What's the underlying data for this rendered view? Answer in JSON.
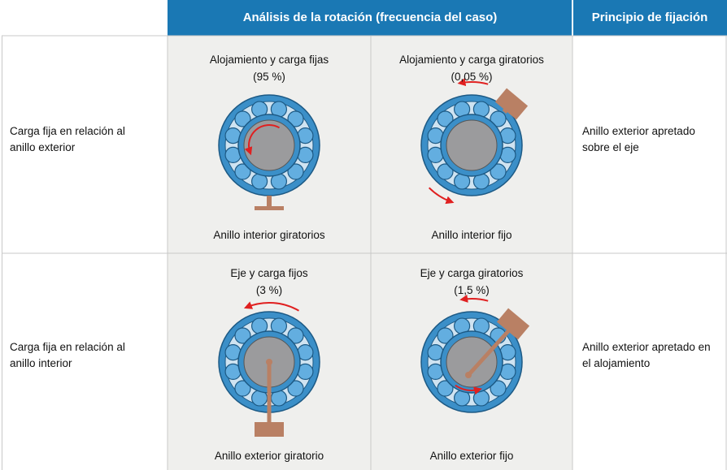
{
  "header": {
    "analysis": "Análisis de la rotación (frecuencia del caso)",
    "principle": "Principio de fijación"
  },
  "rows": [
    {
      "load": "Carga fija en relación al anillo exterior",
      "principle": "Anillo exterior apretado sobre el eje",
      "cases": [
        {
          "title": "Alojamiento y carga fijas",
          "frequency": "(95 %)",
          "caption": "Anillo interior giratorios"
        },
        {
          "title": "Alojamiento y carga giratorios",
          "frequency": "(0,05 %)",
          "caption": "Anillo interior fijo"
        }
      ]
    },
    {
      "load": "Carga fija en relación al anillo interior",
      "principle": "Anillo exterior apretado en el alojamiento",
      "cases": [
        {
          "title": "Eje y carga fijos",
          "frequency": "(3 %)",
          "caption": "Anillo exterior giratorio"
        },
        {
          "title": "Eje y carga giratorios",
          "frequency": "(1,5 %)",
          "caption": "Anillo exterior fijo"
        }
      ]
    }
  ]
}
